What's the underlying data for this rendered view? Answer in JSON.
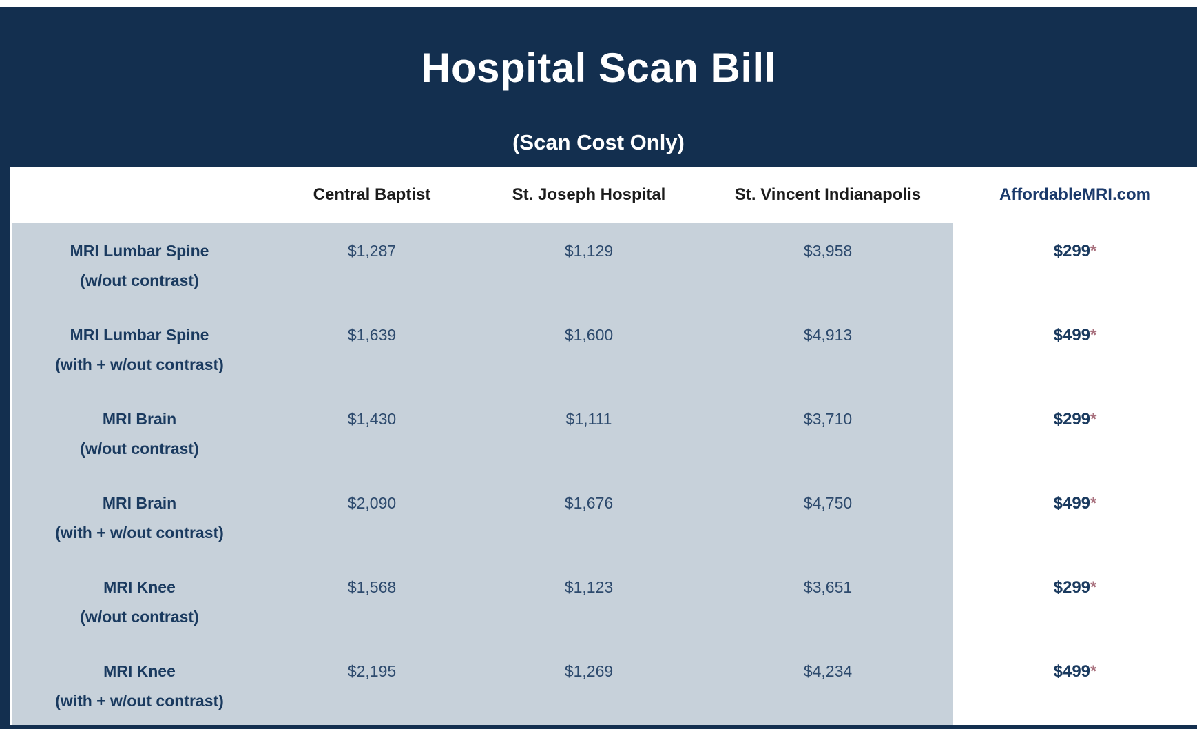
{
  "header": {
    "title": "Hospital Scan Bill",
    "subtitle": "(Scan Cost Only)"
  },
  "colors": {
    "navy_background": "#132f4f",
    "light_gray_panel": "#c7d1da",
    "label_text": "#1a3a5f",
    "value_text": "#2d4a6d",
    "hospital_header_text": "#1c1c1c",
    "brand_link": "#1b3a6b",
    "asterisk": "#a8707d"
  },
  "table": {
    "columns": [
      "",
      "Central Baptist",
      "St. Joseph Hospital",
      "St. Vincent Indianapolis",
      "AffordableMRI.com"
    ],
    "rows": [
      {
        "name": "MRI Lumbar Spine",
        "variant": "(w/out contrast)",
        "prices": [
          "$1,287",
          "$1,129",
          "$3,958"
        ],
        "affordable_price": "$299",
        "footnote_marker": "*"
      },
      {
        "name": "MRI Lumbar Spine",
        "variant": "(with + w/out contrast)",
        "prices": [
          "$1,639",
          "$1,600",
          "$4,913"
        ],
        "affordable_price": "$499",
        "footnote_marker": "*"
      },
      {
        "name": "MRI Brain",
        "variant": "(w/out contrast)",
        "prices": [
          "$1,430",
          "$1,111",
          "$3,710"
        ],
        "affordable_price": "$299",
        "footnote_marker": "*"
      },
      {
        "name": "MRI Brain",
        "variant": "(with + w/out contrast)",
        "prices": [
          "$2,090",
          "$1,676",
          "$4,750"
        ],
        "affordable_price": "$499",
        "footnote_marker": "*"
      },
      {
        "name": "MRI Knee",
        "variant": "(w/out contrast)",
        "prices": [
          "$1,568",
          "$1,123",
          "$3,651"
        ],
        "affordable_price": "$299",
        "footnote_marker": "*"
      },
      {
        "name": "MRI Knee",
        "variant": "(with + w/out contrast)",
        "prices": [
          "$2,195",
          "$1,269",
          "$4,234"
        ],
        "affordable_price": "$499",
        "footnote_marker": "*"
      }
    ]
  }
}
